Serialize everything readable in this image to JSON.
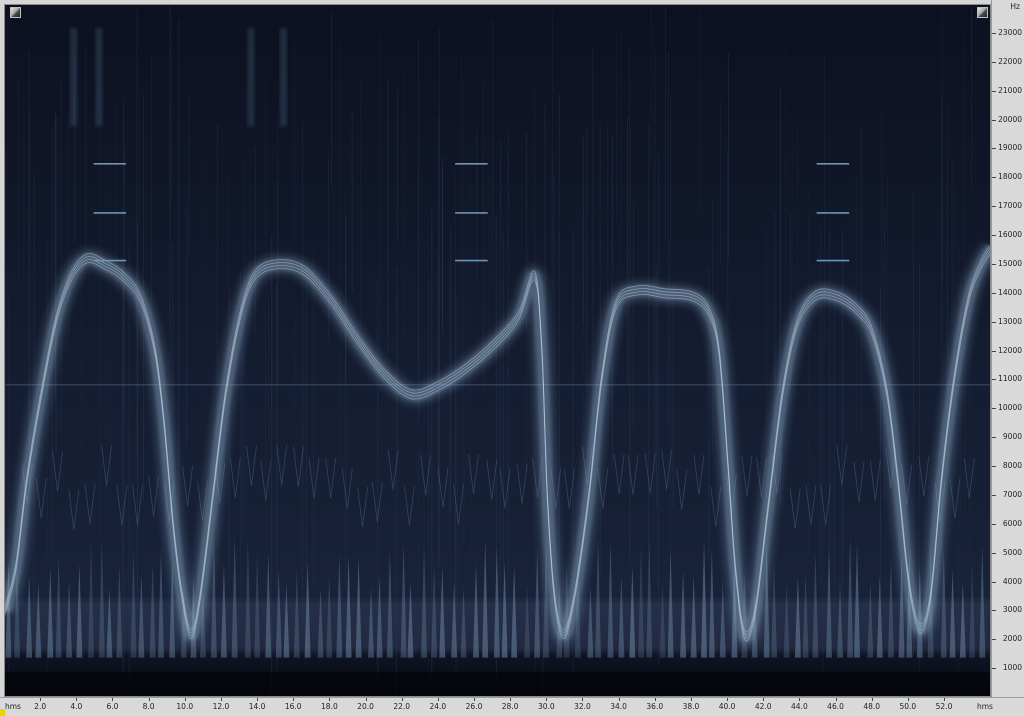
{
  "y_axis": {
    "unit": "Hz",
    "ticks": [
      "23000",
      "22000",
      "21000",
      "20000",
      "19000",
      "18000",
      "17000",
      "16000",
      "15000",
      "14000",
      "13000",
      "12000",
      "11000",
      "10000",
      "9000",
      "8000",
      "7000",
      "6000",
      "5000",
      "4000",
      "3000",
      "2000",
      "1000"
    ],
    "max_hz": 24000
  },
  "x_axis": {
    "unit_left": "hms",
    "unit_right": "hms",
    "ticks": [
      "2.0",
      "4.0",
      "6.0",
      "8.0",
      "10.0",
      "12.0",
      "14.0",
      "16.0",
      "18.0",
      "20.0",
      "22.0",
      "24.0",
      "26.0",
      "28.0",
      "30.0",
      "32.0",
      "34.0",
      "36.0",
      "38.0",
      "40.0",
      "42.0",
      "44.0",
      "46.0",
      "48.0",
      "50.0",
      "52.0"
    ],
    "max_time": 54.6
  },
  "colors": {
    "background": "#0f1524",
    "trace": "#8fb0cc",
    "marker": "#6e93b4"
  },
  "icons": {
    "top_left": "expand-icon",
    "top_right": "expand-icon"
  }
}
